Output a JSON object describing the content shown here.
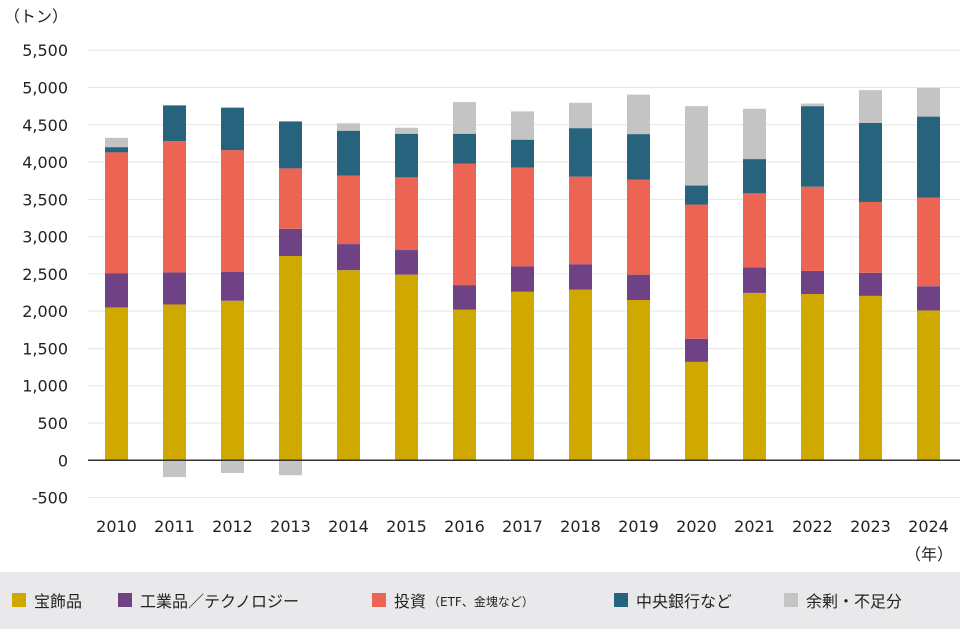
{
  "chart_data": {
    "type": "bar",
    "stacked": true,
    "ylabel": "（トン）",
    "xlabel": "（年）",
    "ylim": [
      -500,
      5500
    ],
    "yticks": [
      -500,
      0,
      500,
      1000,
      1500,
      2000,
      2500,
      3000,
      3500,
      4000,
      4500,
      5000,
      5500
    ],
    "ytick_labels": [
      "-500",
      "0",
      "500",
      "1,000",
      "1,500",
      "2,000",
      "2,500",
      "3,000",
      "3,500",
      "4,000",
      "4,500",
      "5,000",
      "5,500"
    ],
    "grid": true,
    "legend_position": "bottom",
    "categories": [
      "2010",
      "2011",
      "2012",
      "2013",
      "2014",
      "2015",
      "2016",
      "2017",
      "2018",
      "2019",
      "2020",
      "2021",
      "2022",
      "2023",
      "2024"
    ],
    "series": [
      {
        "name": "宝飾品",
        "color": "#cfa800",
        "values": [
          2050,
          2090,
          2140,
          2740,
          2550,
          2490,
          2020,
          2260,
          2290,
          2150,
          1320,
          2245,
          2230,
          2205,
          2010
        ]
      },
      {
        "name": "工業品／テクノロジー",
        "color": "#6f4285",
        "values": [
          460,
          430,
          390,
          365,
          350,
          330,
          330,
          340,
          340,
          340,
          310,
          340,
          310,
          310,
          325
        ]
      },
      {
        "name": "投資",
        "name_note": "（ETF、金塊など）",
        "color": "#ec6453",
        "values": [
          1620,
          1760,
          1630,
          810,
          920,
          975,
          1630,
          1325,
          1175,
          1275,
          1800,
          995,
          1130,
          950,
          1190
        ]
      },
      {
        "name": "中央銀行など",
        "color": "#27637c",
        "values": [
          70,
          480,
          570,
          630,
          600,
          585,
          400,
          375,
          650,
          610,
          255,
          460,
          1080,
          1060,
          1085
        ]
      },
      {
        "name": "余剰・不足分",
        "color": "#c4c4c4",
        "values": [
          125,
          -225,
          -170,
          -200,
          100,
          80,
          425,
          380,
          340,
          530,
          1065,
          675,
          35,
          440,
          385
        ]
      }
    ]
  }
}
